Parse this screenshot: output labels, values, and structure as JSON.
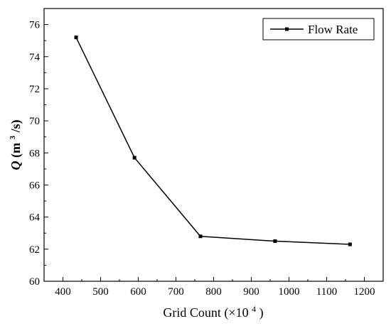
{
  "chart_data": {
    "type": "line",
    "title": "",
    "xlabel": "Grid Count",
    "xlabel_unit": "(×10",
    "xlabel_unit_exp": "4",
    "xlabel_unit_close": ")",
    "ylabel_symbol": "Q",
    "ylabel_unit_open": "(m",
    "ylabel_unit_exp": "3",
    "ylabel_unit_close": "/s)",
    "xlim": [
      350,
      1250
    ],
    "ylim": [
      60,
      77
    ],
    "xticks": [
      400,
      500,
      600,
      700,
      800,
      900,
      1000,
      1100,
      1200
    ],
    "yticks": [
      60,
      62,
      64,
      66,
      68,
      70,
      72,
      74,
      76
    ],
    "grid": false,
    "legend_position": "top-right",
    "series": [
      {
        "name": "Flow Rate",
        "color": "#000000",
        "marker": "square",
        "x": [
          435,
          590,
          765,
          963,
          1162
        ],
        "y": [
          75.2,
          67.7,
          62.8,
          62.5,
          62.3
        ]
      }
    ]
  }
}
